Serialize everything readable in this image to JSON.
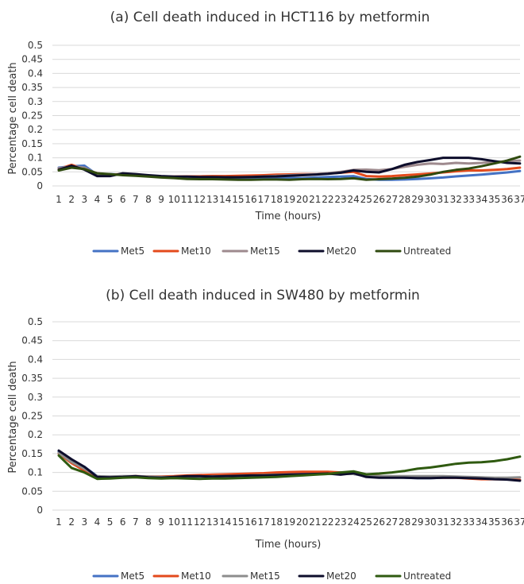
{
  "chart_data": [
    {
      "type": "line",
      "title": "(a) Cell death induced in HCT116 by metformin",
      "xlabel": "Time (hours)",
      "ylabel": "Percentage cell death",
      "ylim": [
        0,
        0.5
      ],
      "yticks": [
        "0",
        "0.05",
        "0.1",
        "0.15",
        "0.2",
        "0.25",
        "0.3",
        "0.35",
        "0.4",
        "0.45",
        "0.5"
      ],
      "x": [
        "1",
        "2",
        "3",
        "4",
        "5",
        "6",
        "7",
        "8",
        "9",
        "10",
        "11",
        "12",
        "13",
        "14",
        "15",
        "16",
        "17",
        "18",
        "19",
        "20",
        "21",
        "22",
        "23",
        "24",
        "25",
        "26",
        "27",
        "28",
        "29",
        "30",
        "31",
        "32",
        "33",
        "34",
        "35",
        "36",
        "37"
      ],
      "grid": true,
      "legend": "bottom",
      "series": [
        {
          "name": "Met5",
          "color": "#4472c4",
          "values": [
            0.065,
            0.07,
            0.072,
            0.04,
            0.042,
            0.04,
            0.038,
            0.035,
            0.032,
            0.03,
            0.03,
            0.028,
            0.028,
            0.027,
            0.027,
            0.026,
            0.026,
            0.027,
            0.028,
            0.028,
            0.03,
            0.032,
            0.033,
            0.035,
            0.025,
            0.022,
            0.022,
            0.023,
            0.025,
            0.027,
            0.03,
            0.034,
            0.037,
            0.04,
            0.044,
            0.048,
            0.053
          ]
        },
        {
          "name": "Met10",
          "color": "#e34a1c",
          "values": [
            0.06,
            0.075,
            0.06,
            0.045,
            0.04,
            0.042,
            0.04,
            0.036,
            0.034,
            0.033,
            0.034,
            0.034,
            0.035,
            0.035,
            0.036,
            0.037,
            0.038,
            0.04,
            0.041,
            0.042,
            0.042,
            0.044,
            0.047,
            0.05,
            0.035,
            0.033,
            0.035,
            0.038,
            0.041,
            0.044,
            0.048,
            0.052,
            0.055,
            0.055,
            0.057,
            0.06,
            0.065
          ]
        },
        {
          "name": "Met15",
          "color": "#9e8a8e",
          "values": [
            0.063,
            0.07,
            0.065,
            0.042,
            0.04,
            0.04,
            0.038,
            0.035,
            0.032,
            0.031,
            0.03,
            0.03,
            0.03,
            0.03,
            0.031,
            0.032,
            0.034,
            0.036,
            0.038,
            0.04,
            0.042,
            0.045,
            0.05,
            0.057,
            0.058,
            0.056,
            0.06,
            0.068,
            0.075,
            0.08,
            0.078,
            0.082,
            0.08,
            0.082,
            0.085,
            0.088,
            0.09
          ]
        },
        {
          "name": "Met20",
          "color": "#0d0d2b",
          "values": [
            0.058,
            0.072,
            0.058,
            0.035,
            0.035,
            0.045,
            0.042,
            0.038,
            0.035,
            0.033,
            0.033,
            0.032,
            0.032,
            0.031,
            0.031,
            0.032,
            0.033,
            0.034,
            0.036,
            0.038,
            0.04,
            0.043,
            0.047,
            0.055,
            0.05,
            0.048,
            0.06,
            0.075,
            0.085,
            0.092,
            0.1,
            0.1,
            0.1,
            0.095,
            0.088,
            0.082,
            0.08
          ]
        },
        {
          "name": "Untreated",
          "color": "#2f4a0f",
          "values": [
            0.055,
            0.065,
            0.06,
            0.045,
            0.042,
            0.038,
            0.036,
            0.033,
            0.03,
            0.028,
            0.025,
            0.024,
            0.024,
            0.023,
            0.022,
            0.022,
            0.023,
            0.023,
            0.022,
            0.024,
            0.025,
            0.024,
            0.025,
            0.027,
            0.022,
            0.024,
            0.026,
            0.029,
            0.033,
            0.04,
            0.05,
            0.057,
            0.062,
            0.07,
            0.08,
            0.09,
            0.104
          ]
        }
      ]
    },
    {
      "type": "line",
      "title": "(b) Cell death induced in SW480 by metformin",
      "xlabel": "Time (hours)",
      "ylabel": "Percentage cell death",
      "ylim": [
        0,
        0.5
      ],
      "yticks": [
        "0",
        "0.05",
        "0.1",
        "0.15",
        "0.2",
        "0.25",
        "0.3",
        "0.35",
        "0.4",
        "0.45",
        "0.5"
      ],
      "x": [
        "1",
        "2",
        "3",
        "4",
        "5",
        "6",
        "7",
        "8",
        "9",
        "10",
        "11",
        "12",
        "13",
        "14",
        "15",
        "16",
        "17",
        "18",
        "19",
        "20",
        "21",
        "22",
        "23",
        "24",
        "25",
        "26",
        "27",
        "28",
        "29",
        "30",
        "31",
        "32",
        "33",
        "34",
        "35",
        "36",
        "37"
      ],
      "grid": true,
      "legend": "bottom",
      "series": [
        {
          "name": "Met5",
          "color": "#4472c4",
          "values": [
            0.155,
            0.13,
            0.115,
            0.09,
            0.088,
            0.088,
            0.088,
            0.087,
            0.087,
            0.087,
            0.088,
            0.089,
            0.09,
            0.091,
            0.092,
            0.093,
            0.094,
            0.095,
            0.096,
            0.097,
            0.098,
            0.098,
            0.097,
            0.096,
            0.09,
            0.088,
            0.087,
            0.086,
            0.085,
            0.085,
            0.086,
            0.086,
            0.085,
            0.084,
            0.083,
            0.082,
            0.08
          ]
        },
        {
          "name": "Met10",
          "color": "#e34a1c",
          "values": [
            0.15,
            0.125,
            0.105,
            0.088,
            0.088,
            0.089,
            0.09,
            0.089,
            0.089,
            0.09,
            0.092,
            0.093,
            0.094,
            0.095,
            0.096,
            0.097,
            0.098,
            0.1,
            0.101,
            0.102,
            0.102,
            0.102,
            0.1,
            0.098,
            0.092,
            0.09,
            0.088,
            0.087,
            0.086,
            0.086,
            0.086,
            0.086,
            0.084,
            0.082,
            0.082,
            0.082,
            0.08
          ]
        },
        {
          "name": "Met15",
          "color": "#8c8c8c",
          "values": [
            0.152,
            0.128,
            0.11,
            0.09,
            0.089,
            0.09,
            0.09,
            0.089,
            0.088,
            0.088,
            0.089,
            0.089,
            0.09,
            0.09,
            0.091,
            0.092,
            0.093,
            0.094,
            0.094,
            0.095,
            0.095,
            0.096,
            0.096,
            0.096,
            0.09,
            0.09,
            0.09,
            0.09,
            0.09,
            0.09,
            0.09,
            0.089,
            0.088,
            0.087,
            0.086,
            0.086,
            0.087
          ]
        },
        {
          "name": "Met20",
          "color": "#0d0d2b",
          "values": [
            0.158,
            0.135,
            0.115,
            0.088,
            0.087,
            0.088,
            0.09,
            0.087,
            0.086,
            0.088,
            0.09,
            0.09,
            0.089,
            0.09,
            0.091,
            0.092,
            0.092,
            0.093,
            0.094,
            0.095,
            0.096,
            0.097,
            0.094,
            0.098,
            0.088,
            0.086,
            0.086,
            0.086,
            0.085,
            0.085,
            0.086,
            0.086,
            0.085,
            0.084,
            0.082,
            0.081,
            0.078
          ]
        },
        {
          "name": "Untreated",
          "color": "#2f5a10",
          "values": [
            0.145,
            0.112,
            0.1,
            0.083,
            0.084,
            0.086,
            0.087,
            0.085,
            0.084,
            0.085,
            0.084,
            0.083,
            0.084,
            0.084,
            0.085,
            0.086,
            0.087,
            0.088,
            0.09,
            0.092,
            0.094,
            0.096,
            0.1,
            0.103,
            0.095,
            0.097,
            0.1,
            0.104,
            0.11,
            0.113,
            0.118,
            0.123,
            0.126,
            0.127,
            0.13,
            0.135,
            0.142
          ]
        }
      ]
    }
  ]
}
